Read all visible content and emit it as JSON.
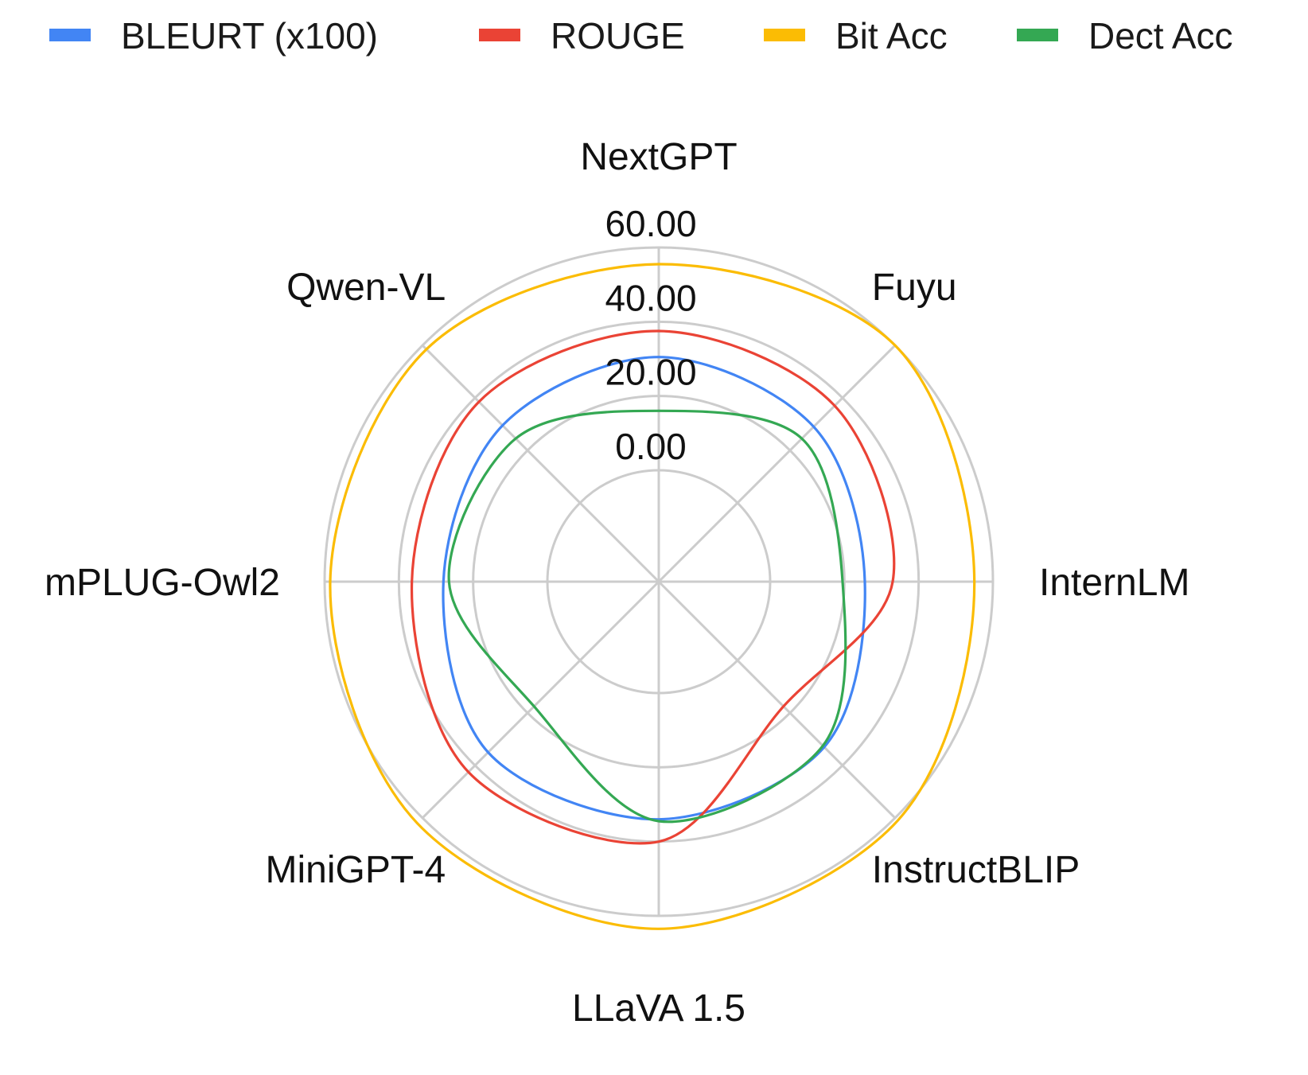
{
  "chart_data": {
    "type": "radar",
    "categories": [
      "NextGPT",
      "Fuyu",
      "InternLM",
      "InstructBLIP",
      "LLaVA 1.5",
      "MiniGPT-4",
      "mPLUG-Owl2",
      "Qwen-VL"
    ],
    "series": [
      {
        "name": "BLEURT (x100)",
        "color": "#4285F4",
        "values": [
          30.5,
          29.0,
          25.5,
          33.0,
          34.0,
          35.0,
          28.0,
          29.5
        ]
      },
      {
        "name": "ROUGE",
        "color": "#EA4335",
        "values": [
          37.5,
          37.0,
          33.0,
          17.5,
          40.0,
          42.5,
          36.5,
          38.5
        ]
      },
      {
        "name": "Bit Acc",
        "color": "#FBBC04",
        "values": [
          55.5,
          60.0,
          55.0,
          61.0,
          63.5,
          62.0,
          58.5,
          58.5
        ]
      },
      {
        "name": "Dect Acc",
        "color": "#34A853",
        "values": [
          16.0,
          24.5,
          19.5,
          32.5,
          34.5,
          17.5,
          26.5,
          24.5
        ]
      }
    ],
    "rlim": [
      0,
      60
    ],
    "ticks": [
      "0.00",
      "20.00",
      "40.00",
      "60.00"
    ],
    "tick_values": [
      0,
      20,
      40,
      60
    ],
    "legend_position": "top",
    "grid": true
  }
}
